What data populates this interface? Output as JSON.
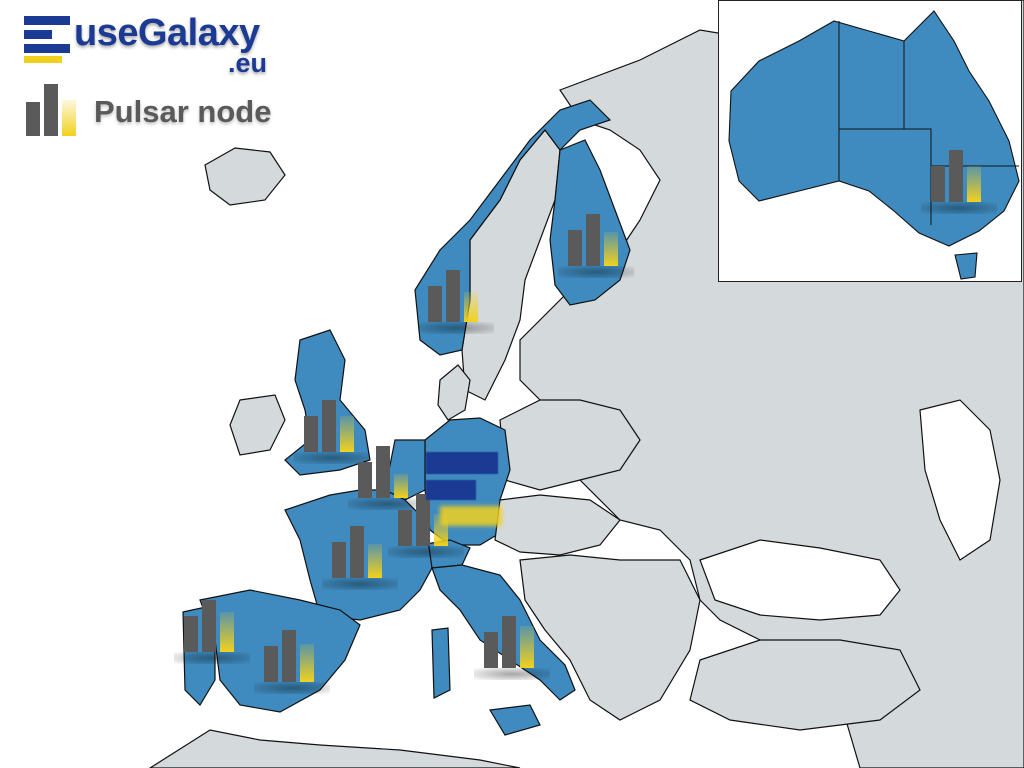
{
  "brand": {
    "name": "useGalaxy",
    "suffix": ".eu",
    "primary_color": "#1b3a93",
    "accent_color": "#f2d11e"
  },
  "legend": {
    "label": "Pulsar node",
    "icon": "bar-chart-icon"
  },
  "map": {
    "region": "Europe",
    "highlight_color": "#3f8bbf",
    "base_color": "#d4d9dc",
    "water_color": "#ffffff",
    "border_color": "#111111",
    "highlighted_countries": [
      "Norway",
      "Finland",
      "United Kingdom",
      "Netherlands",
      "Belgium",
      "Germany",
      "France",
      "Spain",
      "Portugal",
      "Italy",
      "Switzerland"
    ]
  },
  "inset": {
    "region": "Australia",
    "highlight_color": "#3f8bbf"
  },
  "nodes": [
    {
      "id": "norway",
      "icon": "pulsar-node-icon"
    },
    {
      "id": "finland",
      "icon": "pulsar-node-icon"
    },
    {
      "id": "uk",
      "icon": "pulsar-node-icon"
    },
    {
      "id": "belgium",
      "icon": "pulsar-node-icon"
    },
    {
      "id": "germany-south",
      "icon": "pulsar-node-icon"
    },
    {
      "id": "france",
      "icon": "pulsar-node-icon"
    },
    {
      "id": "portugal",
      "icon": "pulsar-node-icon"
    },
    {
      "id": "spain",
      "icon": "pulsar-node-icon"
    },
    {
      "id": "italy",
      "icon": "pulsar-node-icon"
    },
    {
      "id": "australia",
      "icon": "pulsar-node-icon"
    }
  ]
}
